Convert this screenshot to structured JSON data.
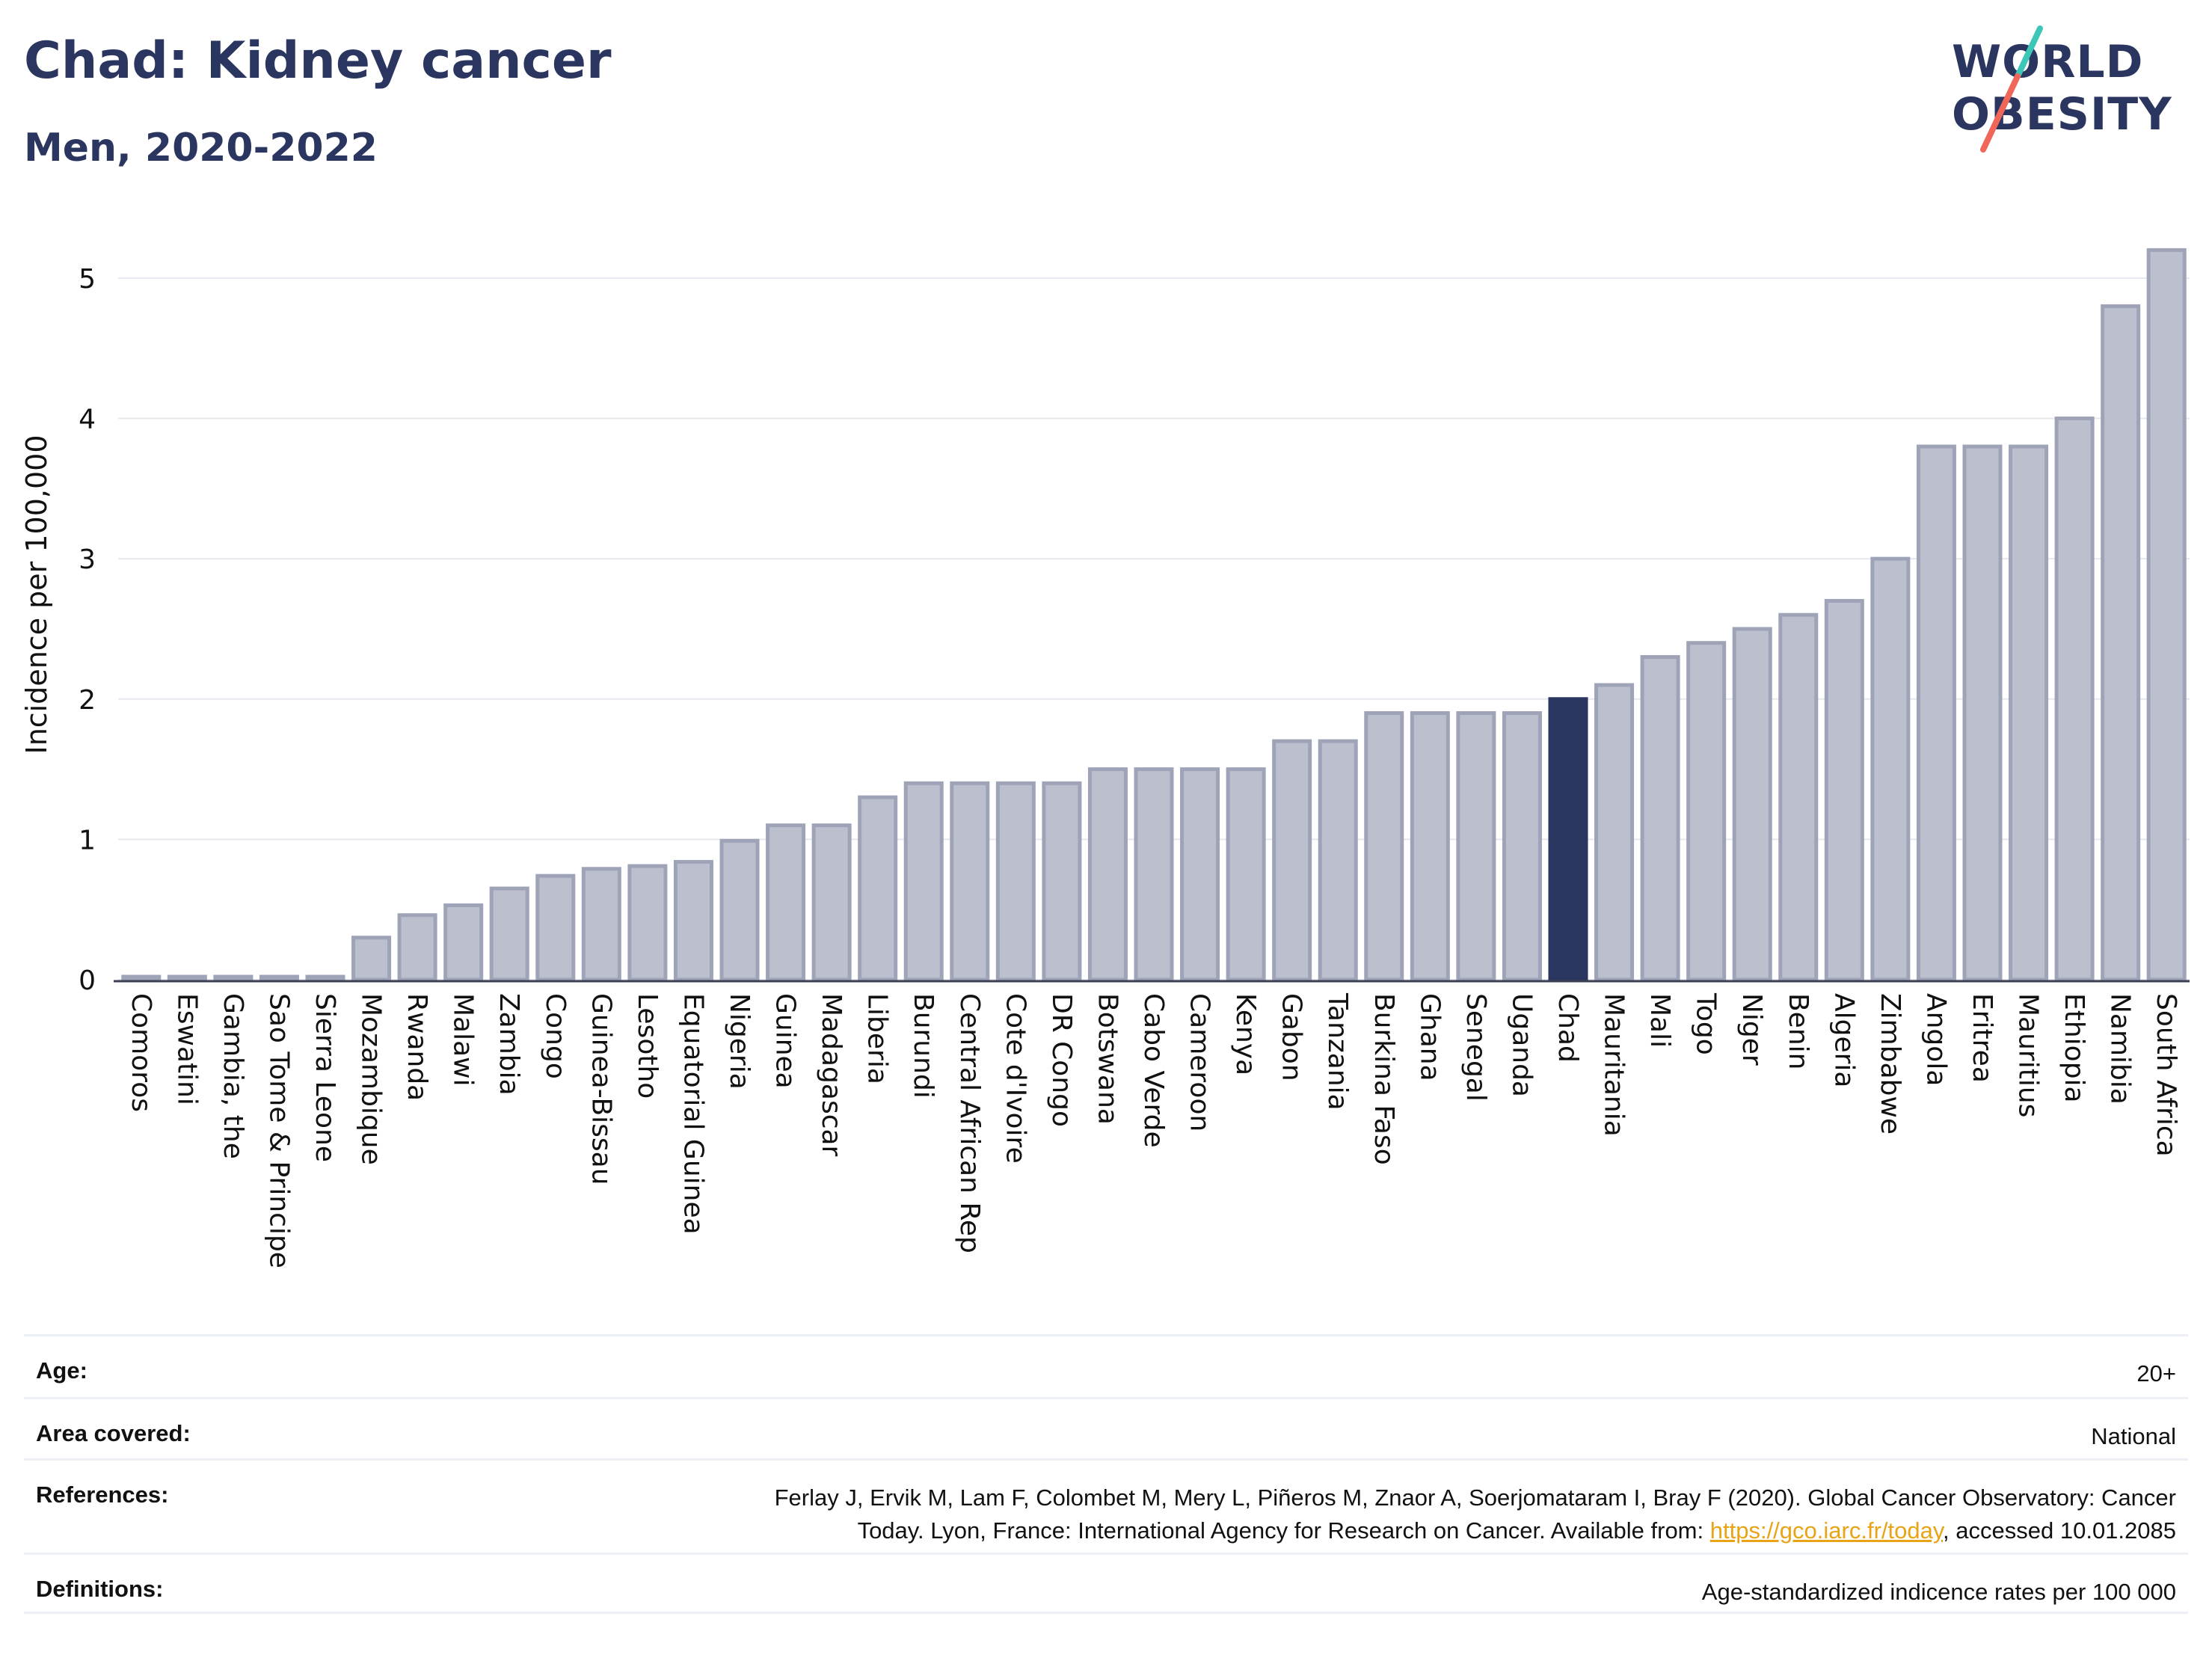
{
  "header": {
    "title": "Chad: Kidney cancer",
    "subtitle": "Men, 2020-2022"
  },
  "logo": {
    "line1": "WORLD",
    "line2": "OBESITY",
    "colors": {
      "text": "#2b3660",
      "slash_top": "#3cc6b8",
      "slash_bottom": "#f0675a"
    }
  },
  "chart_data": {
    "type": "bar",
    "ylabel": "Incidence per 100,000",
    "ylim": [
      0,
      5.25
    ],
    "yticks": [
      0,
      1,
      2,
      3,
      4,
      5
    ],
    "grid": true,
    "highlight": "Chad",
    "colors": {
      "bar": "#bcc0ce",
      "bar_edge": "#9ea3b8",
      "highlight": "#2b3660",
      "grid": "#e6e8ee"
    },
    "categories": [
      "Comoros",
      "Eswatini",
      "Gambia, the",
      "Sao Tome & Principe",
      "Sierra Leone",
      "Mozambique",
      "Rwanda",
      "Malawi",
      "Zambia",
      "Congo",
      "Guinea-Bissau",
      "Lesotho",
      "Equatorial Guinea",
      "Nigeria",
      "Guinea",
      "Madagascar",
      "Liberia",
      "Burundi",
      "Central African Rep",
      "Cote d'Ivoire",
      "DR Congo",
      "Botswana",
      "Cabo Verde",
      "Cameroon",
      "Kenya",
      "Gabon",
      "Tanzania",
      "Burkina Faso",
      "Ghana",
      "Senegal",
      "Uganda",
      "Chad",
      "Mauritania",
      "Mali",
      "Togo",
      "Niger",
      "Benin",
      "Algeria",
      "Zimbabwe",
      "Angola",
      "Eritrea",
      "Mauritius",
      "Ethiopia",
      "Namibia",
      "South Africa"
    ],
    "values": [
      0.0,
      0.0,
      0.0,
      0.0,
      0.0,
      0.3,
      0.46,
      0.53,
      0.65,
      0.74,
      0.79,
      0.81,
      0.84,
      0.99,
      1.1,
      1.1,
      1.3,
      1.4,
      1.4,
      1.4,
      1.4,
      1.5,
      1.5,
      1.5,
      1.5,
      1.7,
      1.7,
      1.9,
      1.9,
      1.9,
      1.9,
      2.0,
      2.1,
      2.3,
      2.4,
      2.5,
      2.6,
      2.7,
      3.0,
      3.8,
      3.8,
      3.8,
      4.0,
      4.8,
      5.2
    ]
  },
  "info": {
    "age": {
      "label": "Age:",
      "value": "20+"
    },
    "area": {
      "label": "Area covered:",
      "value": "National"
    },
    "references": {
      "label": "References:",
      "line1": "Ferlay J, Ervik M, Lam F, Colombet M, Mery L, Piñeros M, Znaor A, Soerjomataram I, Bray F (2020). Global Cancer Observatory: Cancer",
      "line2_before": "Today. Lyon, France: International Agency for Research on Cancer. Available from: ",
      "link": "https://gco.iarc.fr/today",
      "line2_after": ", accessed 10.01.2085"
    },
    "definitions": {
      "label": "Definitions:",
      "value": "Age-standardized indicence rates per 100 000"
    }
  }
}
